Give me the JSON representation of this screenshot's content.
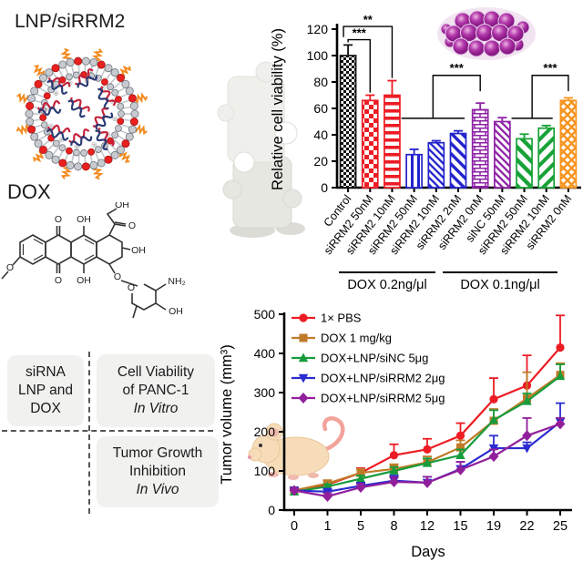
{
  "lnp": {
    "title": "LNP/siRRM2"
  },
  "dox": {
    "title": "DOX",
    "labels": {
      "chain_oh": "OH",
      "chain_o": "O",
      "oh_top": "OH",
      "o_top": "O",
      "tert_oh": "OH",
      "o_bottom": "O",
      "oh_bottom": "OH",
      "methoxy_o": "O",
      "glyco_o": "O",
      "ring_o": "O",
      "nh2": "NH₂",
      "sugar_oh": "OH"
    }
  },
  "summary_boxes": [
    {
      "lines": [
        "siRNA",
        "LNP and",
        "DOX"
      ],
      "italic": ""
    },
    {
      "lines": [
        "Cell Viability",
        "of PANC-1"
      ],
      "italic": "In Vitro"
    },
    {
      "lines": [
        "Tumor Growth",
        "Inhibition"
      ],
      "italic": "In Vivo"
    }
  ],
  "chart_data": [
    {
      "type": "bar",
      "title": "",
      "ylabel": "Relative cell viability (%)",
      "ylim": [
        0,
        120
      ],
      "yticks": [
        0,
        20,
        40,
        60,
        80,
        100,
        120
      ],
      "grid": false,
      "categories": [
        "Control",
        "siRRM2 50nM",
        "siRRM2 10nM",
        "siRRM2 50nM",
        "siRRM2 10nM",
        "siRRM2 2nM",
        "siRRM2 0nM",
        "siNC 50nM",
        "siRRM2 50nM",
        "siRRM2 10nM",
        "siRRM2 0nM"
      ],
      "values": [
        100,
        66,
        70,
        25,
        34,
        41,
        59,
        50,
        37,
        45,
        66
      ],
      "errors": [
        8,
        4,
        11,
        4,
        1.5,
        2,
        5,
        3,
        3.5,
        2,
        2
      ],
      "bar_colors": [
        "#111111",
        "#ec1c24",
        "#ec1c24",
        "#2323cd",
        "#2323cd",
        "#2323cd",
        "#8e22a5",
        "#8e22a5",
        "#17a237",
        "#17a237",
        "#f7941d"
      ],
      "patterns": [
        "checker-fine",
        "checker",
        "hstripes",
        "vstripes",
        "diag-thin",
        "diag-med",
        "brick",
        "diag-thin-2",
        "diag-wide",
        "diag-wide-rev",
        "diamond-lattice"
      ],
      "group_labels": [
        "DOX 0.2ng/μl",
        "DOX 0.1ng/μl"
      ],
      "significance": [
        {
          "label": "***",
          "kind": "pair",
          "a": 0,
          "b": 1,
          "y": 112,
          "ya": 110,
          "yb": 72,
          "off": 0
        },
        {
          "label": "**",
          "kind": "pair",
          "a": 0,
          "b": 2,
          "y": 122,
          "ya": 114,
          "yb": 83,
          "off": -5
        },
        {
          "label": "***",
          "kind": "group",
          "base": [
            3,
            5
          ],
          "baseY": 52.5,
          "target": 6,
          "topY": 85,
          "dropY": 73
        },
        {
          "label": "***",
          "kind": "group",
          "base": [
            8,
            9
          ],
          "baseY": 52.5,
          "target": 10,
          "topY": 85,
          "dropY": 73
        }
      ]
    },
    {
      "type": "line",
      "title": "",
      "xlabel": "Days",
      "ylabel": "Tumor volume (mm³)",
      "x": [
        0,
        1,
        5,
        8,
        12,
        15,
        19,
        22,
        25
      ],
      "ylim": [
        0,
        500
      ],
      "yticks": [
        0,
        100,
        200,
        300,
        400,
        500
      ],
      "grid": false,
      "legend_position": "top-left",
      "series": [
        {
          "name": "1× PBS",
          "color": "#ed1c24",
          "marker": "circle",
          "values": [
            50,
            65,
            95,
            140,
            155,
            190,
            283,
            318,
            415
          ],
          "errors": [
            8,
            10,
            12,
            28,
            27,
            32,
            54,
            77,
            82
          ]
        },
        {
          "name": "DOX 1 mg/kg",
          "color": "#bf7b28",
          "marker": "square",
          "values": [
            50,
            68,
            95,
            105,
            122,
            160,
            228,
            285,
            345
          ],
          "errors": [
            6,
            8,
            10,
            12,
            15,
            18,
            30,
            67,
            30
          ]
        },
        {
          "name": "DOX+LNP/siNC 5μg",
          "color": "#169c3c",
          "marker": "triangle-up",
          "values": [
            47,
            60,
            80,
            100,
            120,
            140,
            230,
            278,
            342
          ],
          "errors": [
            5,
            6,
            8,
            10,
            12,
            15,
            25,
            20,
            30
          ]
        },
        {
          "name": "DOX+LNP/siRRM2 2μg",
          "color": "#2b2bd0",
          "marker": "triangle-down",
          "values": [
            50,
            47,
            62,
            75,
            70,
            105,
            158,
            158,
            225
          ],
          "errors": [
            5,
            6,
            8,
            13,
            15,
            18,
            32,
            15,
            48
          ]
        },
        {
          "name": "DOX+LNP/siRRM2 5μg",
          "color": "#911f9b",
          "marker": "diamond",
          "values": [
            50,
            35,
            58,
            72,
            70,
            103,
            137,
            190,
            220
          ],
          "errors": [
            5,
            8,
            8,
            12,
            15,
            20,
            18,
            45,
            15
          ]
        }
      ]
    }
  ]
}
